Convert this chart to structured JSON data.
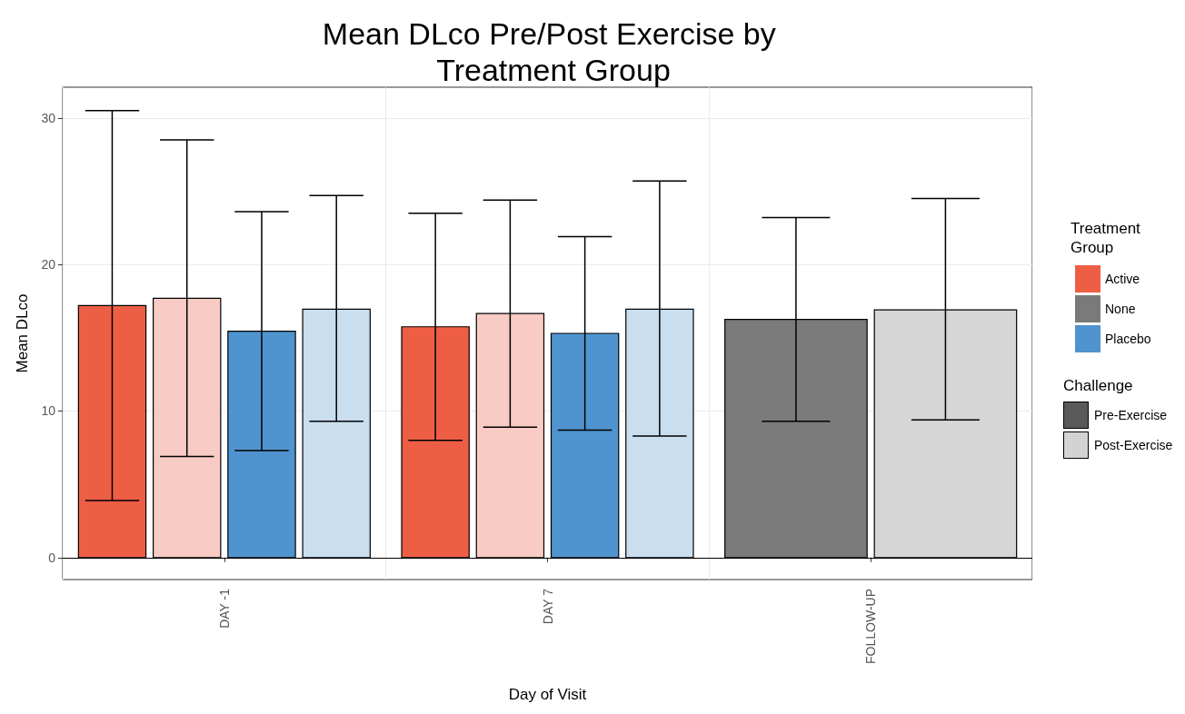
{
  "chart_data": {
    "type": "bar",
    "title": "Mean DLco Pre/Post Exercise by Treatment Group",
    "xlabel": "Day of Visit",
    "ylabel": "Mean DLco",
    "categories": [
      "DAY -1",
      "DAY 7",
      "FOLLOW-UP"
    ],
    "series": [
      {
        "name": "Active",
        "color": "#ee5e45",
        "values": [
          17.2,
          15.75,
          null
        ],
        "errors": [
          [
            3.9,
            30.5
          ],
          [
            8.0,
            23.5
          ],
          null
        ]
      },
      {
        "color": "#f8cbc5",
        "values": [
          17.7,
          16.65,
          null
        ],
        "errors": [
          [
            6.9,
            28.5
          ],
          [
            8.9,
            24.4
          ],
          null
        ]
      },
      {
        "name": "None",
        "color": "#7a7a7a",
        "values": [
          null,
          null,
          16.25
        ],
        "errors": [
          null,
          null,
          [
            9.3,
            23.2
          ]
        ]
      },
      {
        "color": "#d6d6d6",
        "values": [
          null,
          null,
          16.9
        ],
        "errors": [
          null,
          null,
          [
            9.4,
            24.5
          ]
        ]
      },
      {
        "name": "Placebo",
        "color": "#4f94cf",
        "values": [
          15.45,
          15.3,
          null
        ],
        "errors": [
          [
            7.3,
            23.6
          ],
          [
            8.7,
            21.9
          ],
          null
        ]
      },
      {
        "color": "#c9dff0",
        "values": [
          16.95,
          16.95,
          null
        ],
        "errors": [
          [
            9.3,
            24.7
          ],
          [
            8.3,
            25.7
          ],
          null
        ]
      }
    ],
    "ylim": [
      -1.5,
      32.1
    ],
    "yticks": [
      0,
      10,
      20,
      30
    ],
    "grid": true,
    "legend": "right",
    "legend_title": "Treatment Group",
    "ref_lines": [
      {
        "axis": "y",
        "value": 0,
        "color": "#000000"
      }
    ],
    "annotations": [
      "Challenge",
      "Pre-Exercise",
      "Post-Exercise"
    ]
  }
}
